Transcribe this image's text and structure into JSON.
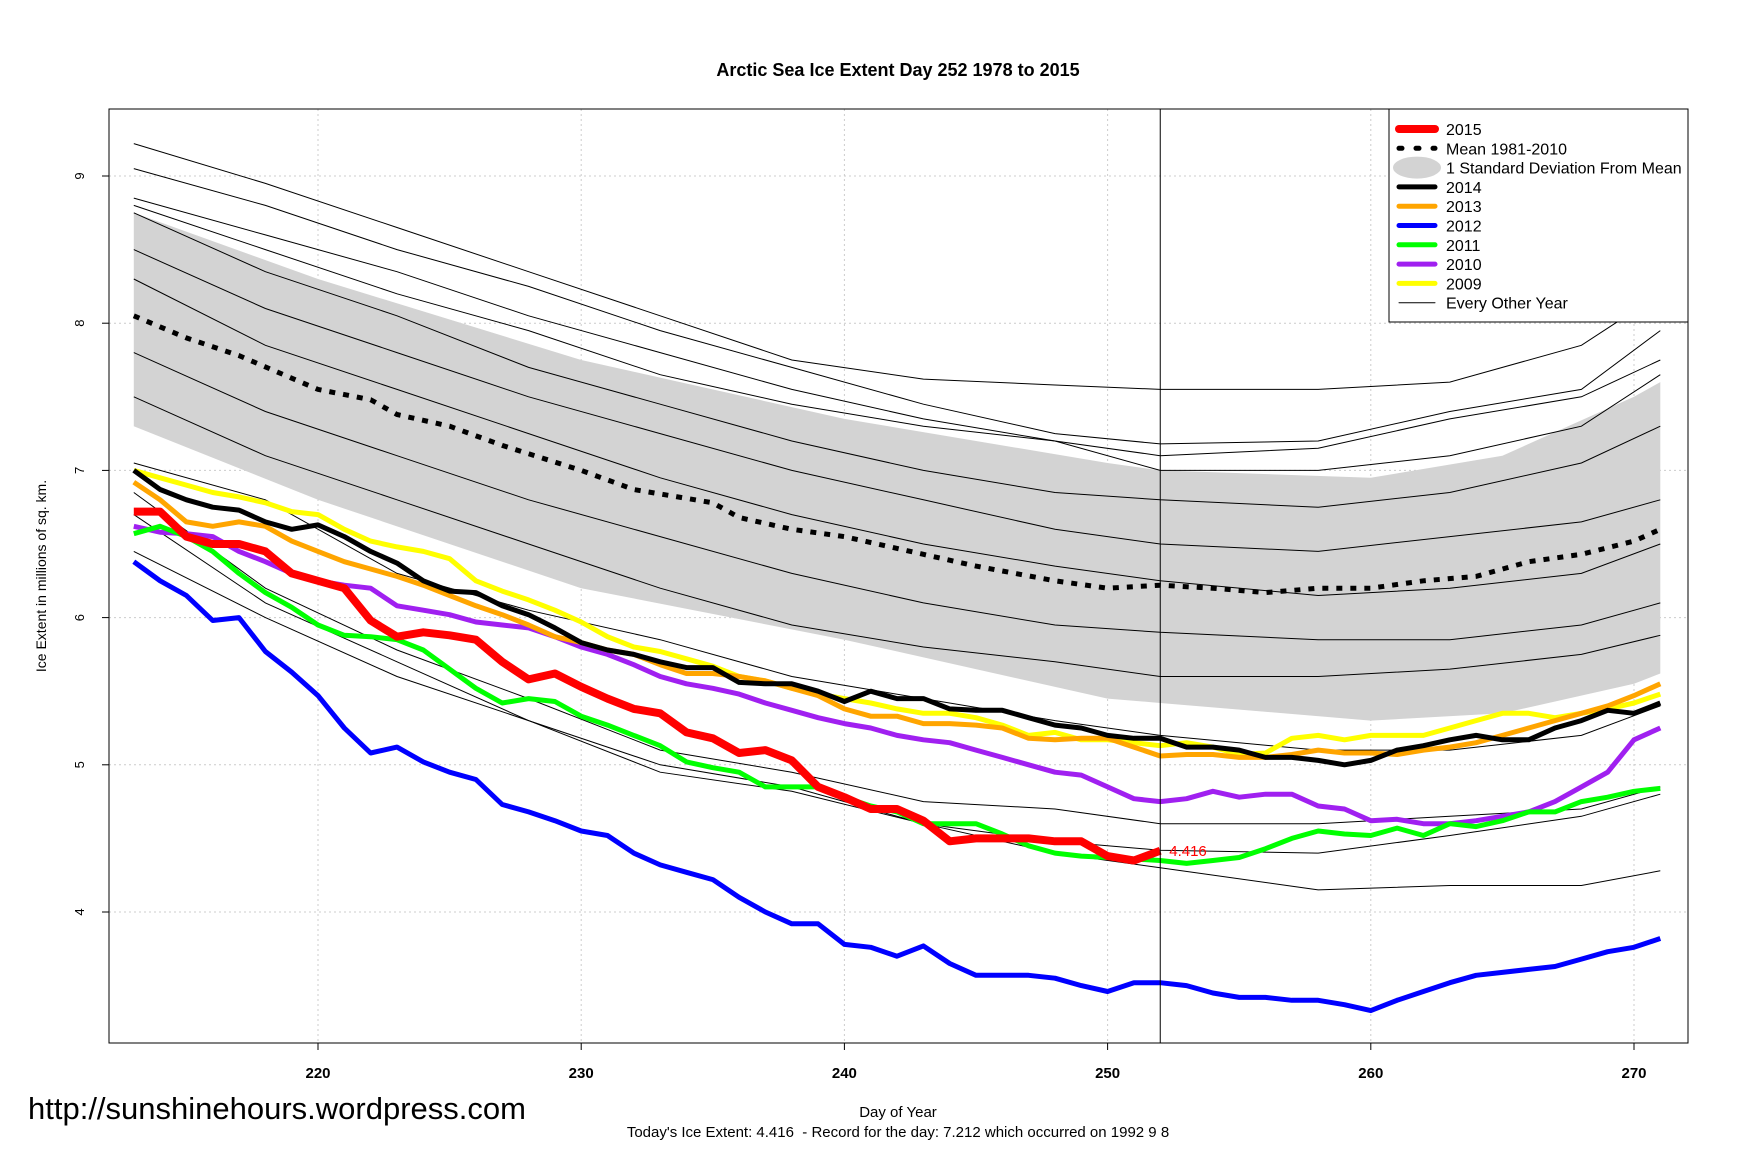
{
  "chart_data": {
    "type": "line",
    "title": "Arctic Sea Ice Extent Day 252 1978 to 2015",
    "xlabel": "Day of Year",
    "ylabel": "Ice Extent in millions of sq. km.",
    "subtitle": "Today's Ice Extent: 4.416  - Record for the day: 7.212 which occurred on 1992 9 8",
    "watermark": "http://sunshinehours.wordpress.com",
    "xlim": [
      212,
      272.5
    ],
    "ylim": [
      3.11,
      9.46
    ],
    "xticks": [
      220,
      230,
      240,
      250,
      260,
      270
    ],
    "yticks": [
      4,
      5,
      6,
      7,
      8,
      9
    ],
    "grid": true,
    "current_day": 252,
    "current_label": "4.416",
    "legend_position": "top-right",
    "legend": [
      {
        "label": "2015",
        "kind": "line",
        "color": "#ff0000",
        "width": 8
      },
      {
        "label": "Mean 1981-2010",
        "kind": "dash",
        "color": "#000000",
        "width": 5
      },
      {
        "label": "1 Standard Deviation From Mean",
        "kind": "band",
        "color": "#d3d3d3"
      },
      {
        "label": "2014",
        "kind": "line",
        "color": "#000000",
        "width": 5
      },
      {
        "label": "2013",
        "kind": "line",
        "color": "#ffa500",
        "width": 5
      },
      {
        "label": "2012",
        "kind": "line",
        "color": "#0000ff",
        "width": 5
      },
      {
        "label": "2011",
        "kind": "line",
        "color": "#00ff00",
        "width": 5
      },
      {
        "label": "2010",
        "kind": "line",
        "color": "#a020f0",
        "width": 5
      },
      {
        "label": "2009",
        "kind": "line",
        "color": "#ffff00",
        "width": 5
      },
      {
        "label": "Every Other Year",
        "kind": "line",
        "color": "#000000",
        "width": 1
      }
    ],
    "sd_band": {
      "x": [
        213,
        220,
        230,
        240,
        250,
        252,
        260,
        265,
        270,
        271
      ],
      "upper": [
        8.75,
        8.3,
        7.75,
        7.35,
        7.05,
        7.0,
        6.95,
        7.1,
        7.5,
        7.6
      ],
      "lower": [
        7.3,
        6.8,
        6.2,
        5.85,
        5.45,
        5.42,
        5.3,
        5.35,
        5.55,
        5.62
      ]
    },
    "mean": {
      "x": [
        213,
        215,
        217,
        220,
        222,
        223,
        225,
        227,
        230,
        232,
        235,
        236,
        238,
        240,
        243,
        245,
        248,
        250,
        252,
        254,
        256,
        258,
        260,
        262,
        264,
        266,
        268,
        270,
        271
      ],
      "y": [
        8.05,
        7.9,
        7.78,
        7.55,
        7.48,
        7.38,
        7.3,
        7.17,
        7.0,
        6.87,
        6.78,
        6.68,
        6.6,
        6.55,
        6.43,
        6.35,
        6.25,
        6.2,
        6.22,
        6.2,
        6.17,
        6.2,
        6.2,
        6.25,
        6.28,
        6.38,
        6.43,
        6.52,
        6.6
      ]
    },
    "other_years_x": [
      213,
      218,
      223,
      228,
      233,
      238,
      243,
      248,
      252,
      258,
      263,
      268,
      271
    ],
    "other_years": [
      [
        9.22,
        8.95,
        8.65,
        8.35,
        8.05,
        7.75,
        7.62,
        7.58,
        7.55,
        7.55,
        7.6,
        7.85,
        8.2
      ],
      [
        9.05,
        8.8,
        8.5,
        8.25,
        7.95,
        7.7,
        7.45,
        7.25,
        7.18,
        7.2,
        7.4,
        7.55,
        7.95
      ],
      [
        8.85,
        8.6,
        8.35,
        8.05,
        7.8,
        7.55,
        7.35,
        7.2,
        7.1,
        7.15,
        7.35,
        7.5,
        7.75
      ],
      [
        8.8,
        8.5,
        8.2,
        7.95,
        7.65,
        7.45,
        7.3,
        7.2,
        7.0,
        7.0,
        7.1,
        7.3,
        7.65
      ],
      [
        8.75,
        8.35,
        8.05,
        7.7,
        7.45,
        7.2,
        7.0,
        6.85,
        6.8,
        6.75,
        6.85,
        7.05,
        7.3
      ],
      [
        8.5,
        8.1,
        7.8,
        7.5,
        7.25,
        7.0,
        6.8,
        6.6,
        6.5,
        6.45,
        6.55,
        6.65,
        6.8
      ],
      [
        8.3,
        7.85,
        7.55,
        7.25,
        6.95,
        6.7,
        6.5,
        6.35,
        6.25,
        6.15,
        6.2,
        6.3,
        6.5
      ],
      [
        7.8,
        7.4,
        7.1,
        6.8,
        6.55,
        6.3,
        6.1,
        5.95,
        5.9,
        5.85,
        5.85,
        5.95,
        6.1
      ],
      [
        7.5,
        7.1,
        6.8,
        6.5,
        6.2,
        5.95,
        5.8,
        5.7,
        5.6,
        5.6,
        5.65,
        5.75,
        5.88
      ],
      [
        7.05,
        6.8,
        6.3,
        6.05,
        5.85,
        5.6,
        5.45,
        5.3,
        5.2,
        5.1,
        5.1,
        5.2,
        5.4
      ],
      [
        6.45,
        6.0,
        5.6,
        5.3,
        5.0,
        4.85,
        4.6,
        4.48,
        4.42,
        4.4,
        4.52,
        4.65,
        4.8
      ],
      [
        6.85,
        6.2,
        5.78,
        5.45,
        5.1,
        4.95,
        4.75,
        4.7,
        4.6,
        4.6,
        4.65,
        4.7,
        4.85
      ],
      [
        6.7,
        6.1,
        5.7,
        5.3,
        4.95,
        4.82,
        4.6,
        4.4,
        4.3,
        4.15,
        4.18,
        4.18,
        4.28
      ]
    ],
    "series": [
      {
        "name": "2009",
        "color": "#ffff00",
        "start": 213,
        "values": [
          7.0,
          6.95,
          6.9,
          6.85,
          6.82,
          6.78,
          6.72,
          6.7,
          6.6,
          6.52,
          6.48,
          6.45,
          6.4,
          6.25,
          6.18,
          6.12,
          6.05,
          5.97,
          5.87,
          5.8,
          5.77,
          5.72,
          5.67,
          5.6,
          5.57,
          5.52,
          5.48,
          5.45,
          5.42,
          5.38,
          5.35,
          5.35,
          5.32,
          5.27,
          5.2,
          5.22,
          5.17,
          5.17,
          5.15,
          5.13,
          5.15,
          5.12,
          5.07,
          5.08,
          5.18,
          5.2,
          5.17,
          5.2,
          5.2,
          5.2,
          5.25,
          5.3,
          5.35,
          5.35,
          5.32,
          5.35,
          5.38,
          5.42,
          5.48
        ]
      },
      {
        "name": "2010",
        "color": "#a020f0",
        "start": 213,
        "values": [
          6.62,
          6.58,
          6.57,
          6.55,
          6.45,
          6.38,
          6.3,
          6.25,
          6.22,
          6.2,
          6.08,
          6.05,
          6.02,
          5.97,
          5.95,
          5.93,
          5.87,
          5.8,
          5.75,
          5.68,
          5.6,
          5.55,
          5.52,
          5.48,
          5.42,
          5.37,
          5.32,
          5.28,
          5.25,
          5.2,
          5.17,
          5.15,
          5.1,
          5.05,
          5.0,
          4.95,
          4.93,
          4.85,
          4.77,
          4.75,
          4.77,
          4.82,
          4.78,
          4.8,
          4.8,
          4.72,
          4.7,
          4.62,
          4.63,
          4.6,
          4.6,
          4.62,
          4.65,
          4.68,
          4.75,
          4.85,
          4.95,
          5.17,
          5.25
        ]
      },
      {
        "name": "2011",
        "color": "#00ff00",
        "start": 213,
        "values": [
          6.57,
          6.62,
          6.55,
          6.45,
          6.3,
          6.17,
          6.07,
          5.95,
          5.88,
          5.87,
          5.85,
          5.78,
          5.65,
          5.52,
          5.42,
          5.45,
          5.43,
          5.33,
          5.27,
          5.2,
          5.13,
          5.02,
          4.98,
          4.95,
          4.85,
          4.85,
          4.85,
          4.78,
          4.72,
          4.68,
          4.6,
          4.6,
          4.6,
          4.53,
          4.45,
          4.4,
          4.38,
          4.37,
          4.36,
          4.35,
          4.33,
          4.35,
          4.37,
          4.43,
          4.5,
          4.55,
          4.53,
          4.52,
          4.57,
          4.52,
          4.6,
          4.58,
          4.62,
          4.68,
          4.68,
          4.75,
          4.78,
          4.82,
          4.84
        ]
      },
      {
        "name": "2012",
        "color": "#0000ff",
        "start": 213,
        "values": [
          6.38,
          6.25,
          6.15,
          5.98,
          6.0,
          5.77,
          5.63,
          5.47,
          5.25,
          5.08,
          5.12,
          5.02,
          4.95,
          4.9,
          4.73,
          4.68,
          4.62,
          4.55,
          4.52,
          4.4,
          4.32,
          4.27,
          4.22,
          4.1,
          4.0,
          3.92,
          3.92,
          3.78,
          3.76,
          3.7,
          3.77,
          3.65,
          3.57,
          3.57,
          3.57,
          3.55,
          3.5,
          3.46,
          3.52,
          3.52,
          3.5,
          3.45,
          3.42,
          3.42,
          3.4,
          3.4,
          3.37,
          3.33,
          3.4,
          3.46,
          3.52,
          3.57,
          3.59,
          3.61,
          3.63,
          3.68,
          3.73,
          3.76,
          3.82
        ]
      },
      {
        "name": "2013",
        "color": "#ffa500",
        "start": 213,
        "values": [
          6.92,
          6.8,
          6.65,
          6.62,
          6.65,
          6.62,
          6.52,
          6.45,
          6.38,
          6.33,
          6.28,
          6.22,
          6.15,
          6.08,
          6.02,
          5.95,
          5.87,
          5.83,
          5.78,
          5.75,
          5.68,
          5.62,
          5.62,
          5.6,
          5.57,
          5.52,
          5.47,
          5.38,
          5.33,
          5.33,
          5.28,
          5.28,
          5.27,
          5.25,
          5.18,
          5.17,
          5.18,
          5.18,
          5.12,
          5.06,
          5.07,
          5.07,
          5.05,
          5.05,
          5.07,
          5.1,
          5.08,
          5.08,
          5.07,
          5.1,
          5.12,
          5.15,
          5.2,
          5.25,
          5.3,
          5.35,
          5.4,
          5.47,
          5.55
        ]
      },
      {
        "name": "2014",
        "color": "#000000",
        "start": 213,
        "values": [
          7.0,
          6.87,
          6.8,
          6.75,
          6.73,
          6.65,
          6.6,
          6.63,
          6.55,
          6.45,
          6.37,
          6.25,
          6.18,
          6.17,
          6.08,
          6.02,
          5.93,
          5.83,
          5.78,
          5.75,
          5.7,
          5.66,
          5.66,
          5.56,
          5.55,
          5.55,
          5.5,
          5.43,
          5.5,
          5.45,
          5.45,
          5.38,
          5.37,
          5.37,
          5.32,
          5.27,
          5.25,
          5.2,
          5.18,
          5.18,
          5.12,
          5.12,
          5.1,
          5.05,
          5.05,
          5.03,
          5.0,
          5.03,
          5.1,
          5.13,
          5.17,
          5.2,
          5.17,
          5.17,
          5.25,
          5.3,
          5.37,
          5.35,
          5.42
        ]
      },
      {
        "name": "2015",
        "color": "#ff0000",
        "start": 213,
        "values": [
          6.72,
          6.72,
          6.55,
          6.5,
          6.5,
          6.45,
          6.3,
          6.25,
          6.2,
          5.98,
          5.87,
          5.9,
          5.88,
          5.85,
          5.7,
          5.58,
          5.62,
          5.53,
          5.45,
          5.38,
          5.35,
          5.22,
          5.18,
          5.08,
          5.1,
          5.03,
          4.85,
          4.78,
          4.7,
          4.7,
          4.62,
          4.48,
          4.5,
          4.5,
          4.5,
          4.48,
          4.48,
          4.38,
          4.35,
          4.416
        ]
      }
    ]
  }
}
